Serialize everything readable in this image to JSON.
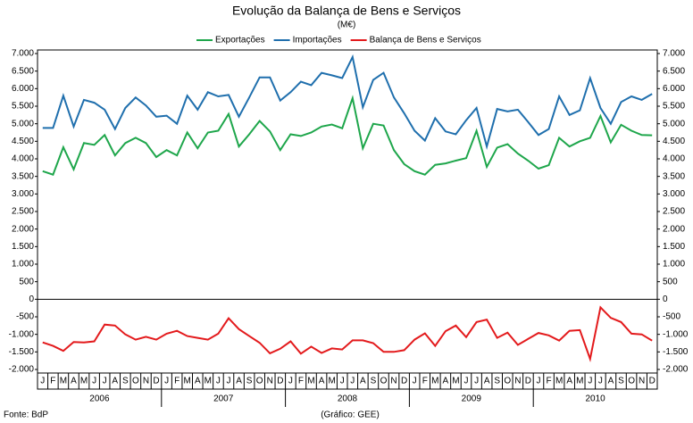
{
  "chart_data": {
    "type": "line",
    "title": "Evolução da Balança de Bens e Serviços",
    "subtitle": "(M€)",
    "source": "Fonte: BdP",
    "credit": "(Gráfico: GEE)",
    "categories": [
      "J",
      "F",
      "M",
      "A",
      "M",
      "J",
      "J",
      "A",
      "S",
      "O",
      "N",
      "D",
      "J",
      "F",
      "M",
      "A",
      "M",
      "J",
      "J",
      "A",
      "S",
      "O",
      "N",
      "D",
      "J",
      "F",
      "M",
      "A",
      "M",
      "J",
      "J",
      "A",
      "S",
      "O",
      "N",
      "D",
      "J",
      "F",
      "M",
      "A",
      "M",
      "J",
      "J",
      "A",
      "S",
      "O",
      "N",
      "D",
      "J",
      "F",
      "M",
      "A",
      "M",
      "J",
      "J",
      "A",
      "S",
      "O",
      "N",
      "D"
    ],
    "year_labels": [
      "2006",
      "2007",
      "2008",
      "2009",
      "2010"
    ],
    "series": [
      {
        "name": "Exportações",
        "color": "#1ea64b",
        "values": [
          3650,
          3550,
          4330,
          3700,
          4450,
          4400,
          4680,
          4100,
          4450,
          4600,
          4450,
          4050,
          4250,
          4100,
          4750,
          4300,
          4750,
          4800,
          5280,
          4350,
          4700,
          5080,
          4780,
          4250,
          4700,
          4650,
          4750,
          4920,
          4980,
          4870,
          5730,
          4300,
          5000,
          4950,
          4250,
          3850,
          3650,
          3550,
          3830,
          3870,
          3950,
          4020,
          4800,
          3770,
          4320,
          4420,
          4150,
          3950,
          3720,
          3820,
          4600,
          4350,
          4500,
          4600,
          5220,
          4470,
          4970,
          4800,
          4680,
          4670
        ]
      },
      {
        "name": "Importações",
        "color": "#1f6fad",
        "values": [
          4880,
          4880,
          5800,
          4920,
          5680,
          5600,
          5400,
          4850,
          5450,
          5750,
          5520,
          5200,
          5230,
          5000,
          5800,
          5400,
          5900,
          5780,
          5820,
          5200,
          5750,
          6320,
          6320,
          5660,
          5900,
          6200,
          6100,
          6450,
          6380,
          6300,
          6900,
          5470,
          6250,
          6450,
          5750,
          5300,
          4800,
          4520,
          5160,
          4780,
          4700,
          5100,
          5450,
          4350,
          5420,
          5350,
          5400,
          5050,
          4680,
          4850,
          5780,
          5250,
          5380,
          6300,
          5450,
          5000,
          5620,
          5780,
          5680,
          5850
        ]
      },
      {
        "name": "Balança de Bens e Serviços",
        "color": "#e31a1c",
        "values": [
          -1230,
          -1330,
          -1470,
          -1220,
          -1230,
          -1200,
          -720,
          -750,
          -1000,
          -1150,
          -1070,
          -1150,
          -980,
          -900,
          -1050,
          -1100,
          -1150,
          -980,
          -540,
          -850,
          -1050,
          -1240,
          -1540,
          -1410,
          -1200,
          -1550,
          -1350,
          -1530,
          -1400,
          -1430,
          -1170,
          -1170,
          -1250,
          -1500,
          -1500,
          -1450,
          -1150,
          -970,
          -1330,
          -910,
          -750,
          -1080,
          -650,
          -580,
          -1100,
          -950,
          -1300,
          -1130,
          -960,
          -1030,
          -1180,
          -900,
          -880,
          -1700,
          -230,
          -530,
          -650,
          -980,
          -1000,
          -1180
        ]
      }
    ],
    "ylim": [
      -2000,
      7000
    ],
    "yticks": [
      {
        "value": 7000,
        "label": "7.000"
      },
      {
        "value": 6500,
        "label": "6.500"
      },
      {
        "value": 6000,
        "label": "6.000"
      },
      {
        "value": 5500,
        "label": "5.500"
      },
      {
        "value": 5000,
        "label": "5.000"
      },
      {
        "value": 4500,
        "label": "4.500"
      },
      {
        "value": 4000,
        "label": "4.000"
      },
      {
        "value": 3500,
        "label": "3.500"
      },
      {
        "value": 3000,
        "label": "3.000"
      },
      {
        "value": 2500,
        "label": "2.500"
      },
      {
        "value": 2000,
        "label": "2.000"
      },
      {
        "value": 1500,
        "label": "1.500"
      },
      {
        "value": 1000,
        "label": "1.000"
      },
      {
        "value": 500,
        "label": "500"
      },
      0,
      -500,
      {
        "value": -1000,
        "label": "-1.000"
      },
      {
        "value": -1500,
        "label": "-1.500"
      },
      {
        "value": -2000,
        "label": "-2.000"
      }
    ],
    "legend": "top",
    "grid": false
  }
}
